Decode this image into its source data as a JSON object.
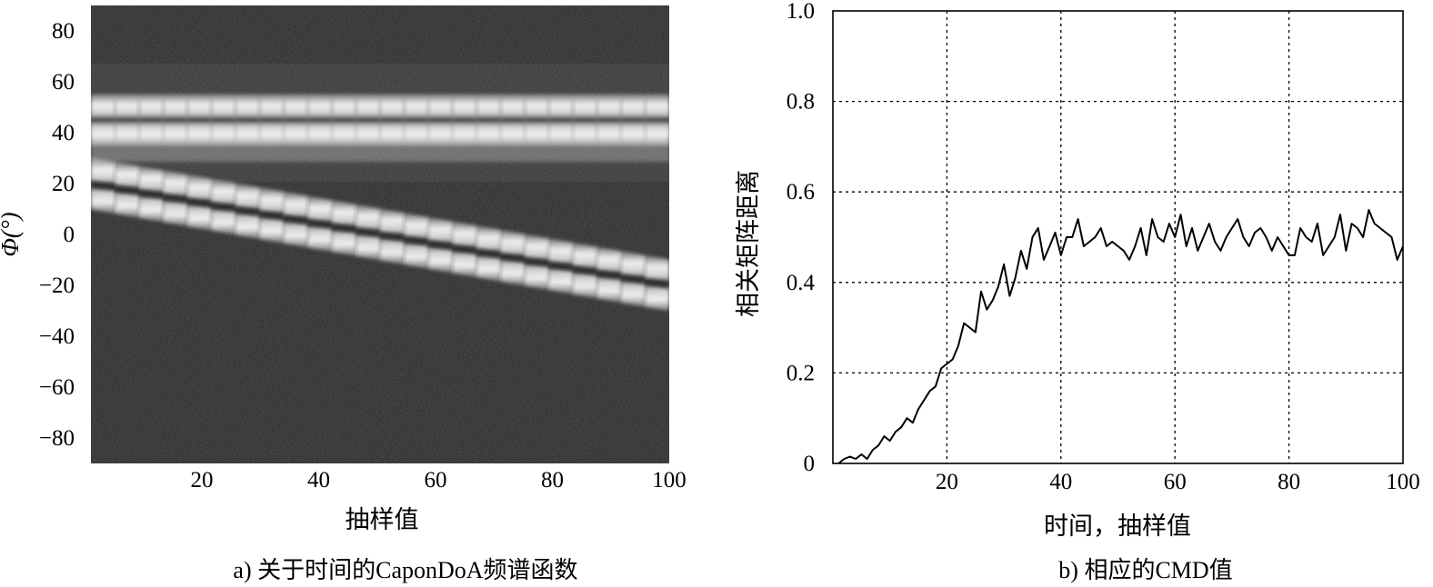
{
  "chart_data": [
    {
      "type": "heatmap",
      "caption": "a) 关于时间的CaponDoA频谱函数",
      "xlabel": "抽样值",
      "ylabel": "Φ(°)",
      "xlim": [
        1,
        100
      ],
      "ylim": [
        -90,
        90
      ],
      "xticks": [
        20,
        40,
        60,
        80,
        100
      ],
      "yticks": [
        80,
        60,
        40,
        20,
        0,
        -20,
        -40,
        -60,
        -80
      ],
      "xtick_labels": [
        "20",
        "40",
        "60",
        "80",
        "100"
      ],
      "ytick_labels": [
        "80",
        "60",
        "40",
        "20",
        "0",
        "−20",
        "−40",
        "−60",
        "−80"
      ],
      "colormap": "grayscale",
      "tracks": [
        {
          "x": [
            1,
            100
          ],
          "y": [
            45,
            45
          ]
        },
        {
          "x": [
            1,
            100
          ],
          "y": [
            20,
            -20
          ]
        }
      ],
      "grid": false
    },
    {
      "type": "line",
      "caption": "b) 相应的CMD值",
      "xlabel": "时间，抽样值",
      "ylabel": "相关矩阵距离",
      "xlim": [
        0,
        100
      ],
      "ylim": [
        0,
        1.0
      ],
      "xticks": [
        0,
        20,
        40,
        60,
        80,
        100
      ],
      "yticks": [
        0,
        0.2,
        0.4,
        0.6,
        0.8,
        1.0
      ],
      "xtick_labels": [
        "0",
        "20",
        "40",
        "60",
        "80",
        "100"
      ],
      "ytick_labels": [
        "0",
        "0.2",
        "0.4",
        "0.6",
        "0.8",
        "1.0"
      ],
      "grid": true,
      "grid_style": "dotted",
      "series": [
        {
          "x": [
            1,
            2,
            3,
            4,
            5,
            6,
            7,
            8,
            9,
            10,
            11,
            12,
            13,
            14,
            15,
            16,
            17,
            18,
            19,
            20,
            21,
            22,
            23,
            24,
            25,
            26,
            27,
            28,
            29,
            30,
            31,
            32,
            33,
            34,
            35,
            36,
            37,
            38,
            39,
            40,
            41,
            42,
            43,
            44,
            45,
            46,
            47,
            48,
            49,
            50,
            51,
            52,
            53,
            54,
            55,
            56,
            57,
            58,
            59,
            60,
            61,
            62,
            63,
            64,
            65,
            66,
            67,
            68,
            69,
            70,
            71,
            72,
            73,
            74,
            75,
            76,
            77,
            78,
            79,
            80,
            81,
            82,
            83,
            84,
            85,
            86,
            87,
            88,
            89,
            90,
            91,
            92,
            93,
            94,
            95,
            96,
            97,
            98,
            99,
            100
          ],
          "y": [
            0.0,
            0.01,
            0.015,
            0.01,
            0.02,
            0.01,
            0.03,
            0.04,
            0.06,
            0.05,
            0.07,
            0.08,
            0.1,
            0.09,
            0.12,
            0.14,
            0.16,
            0.17,
            0.21,
            0.22,
            0.23,
            0.26,
            0.31,
            0.3,
            0.29,
            0.38,
            0.34,
            0.36,
            0.39,
            0.44,
            0.37,
            0.41,
            0.47,
            0.43,
            0.5,
            0.52,
            0.45,
            0.48,
            0.51,
            0.46,
            0.5,
            0.5,
            0.54,
            0.48,
            0.49,
            0.5,
            0.52,
            0.48,
            0.49,
            0.48,
            0.47,
            0.45,
            0.48,
            0.52,
            0.46,
            0.54,
            0.5,
            0.49,
            0.53,
            0.5,
            0.55,
            0.48,
            0.52,
            0.47,
            0.5,
            0.53,
            0.49,
            0.47,
            0.5,
            0.52,
            0.54,
            0.5,
            0.48,
            0.51,
            0.52,
            0.5,
            0.47,
            0.5,
            0.48,
            0.46,
            0.46,
            0.52,
            0.5,
            0.49,
            0.53,
            0.46,
            0.48,
            0.5,
            0.55,
            0.47,
            0.53,
            0.52,
            0.5,
            0.56,
            0.53,
            0.52,
            0.51,
            0.5,
            0.45,
            0.48
          ]
        }
      ]
    }
  ]
}
